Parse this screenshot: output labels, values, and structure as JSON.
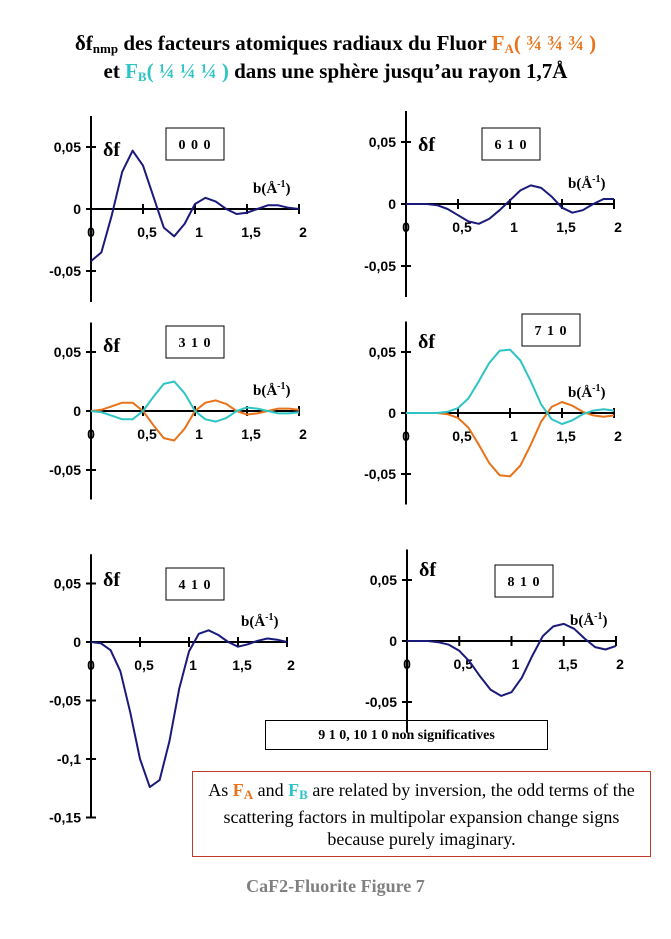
{
  "title": {
    "line1_prefix": "δf",
    "line1_sub": "nmp",
    "line1_text": " des facteurs atomiques radiaux du Fluor ",
    "fa_label": "F",
    "fa_sub": "A",
    "fa_pos": "( ¾ ¾ ¾ )",
    "line2_et": "et  ",
    "fb_label": "F",
    "fb_sub": "B",
    "fb_pos": "( ¼ ¼ ¼ )",
    "line2_text": " dans une sphère jusqu’au rayon 1,7Å"
  },
  "colors": {
    "navy": "#1a1a7a",
    "orange": "#e8731a",
    "cyan": "#2ec4c4"
  },
  "non_significant": "9 1 0, 10 1 0   non significatives",
  "note": {
    "p1": "As ",
    "fa": "F",
    "fa_sub": "A",
    "and": " and ",
    "fb": "F",
    "fb_sub": "B",
    "p2": " are related by inversion, the odd terms of the scattering factors in multipolar expansion change signs because purely imaginary."
  },
  "footer": "CaF2-Fluorite   Figure 7",
  "chart_data": [
    {
      "type": "line",
      "label": "0 0 0",
      "ylabel": "δf",
      "xlabel": "b(Å-1)",
      "xlim": [
        0,
        2
      ],
      "ylim": [
        -0.075,
        0.075
      ],
      "xticks": [
        "0",
        "0,5",
        "1",
        "1,5",
        "2"
      ],
      "yticks": [
        "0,05",
        "0",
        "-0,05"
      ],
      "series": [
        {
          "color": "navy",
          "x": [
            0,
            0.1,
            0.2,
            0.3,
            0.4,
            0.5,
            0.6,
            0.7,
            0.8,
            0.9,
            1.0,
            1.1,
            1.2,
            1.3,
            1.4,
            1.5,
            1.6,
            1.7,
            1.8,
            1.9,
            2.0
          ],
          "y": [
            -0.042,
            -0.035,
            -0.005,
            0.03,
            0.047,
            0.035,
            0.01,
            -0.015,
            -0.022,
            -0.012,
            0.004,
            0.009,
            0.006,
            0.0,
            -0.004,
            -0.003,
            0.0,
            0.003,
            0.003,
            0.001,
            0.0
          ]
        }
      ]
    },
    {
      "type": "line",
      "label": "6 1 0",
      "ylabel": "δf",
      "xlabel": "b(Å-1)",
      "xlim": [
        0,
        2
      ],
      "ylim": [
        -0.075,
        0.075
      ],
      "xticks": [
        "0",
        "0,5",
        "1",
        "1,5",
        "2"
      ],
      "yticks": [
        "0,05",
        "0",
        "-0,05"
      ],
      "series": [
        {
          "color": "navy",
          "x": [
            0,
            0.1,
            0.2,
            0.3,
            0.4,
            0.5,
            0.6,
            0.7,
            0.8,
            0.9,
            1.0,
            1.1,
            1.2,
            1.3,
            1.4,
            1.5,
            1.6,
            1.7,
            1.8,
            1.9,
            2.0
          ],
          "y": [
            0,
            0,
            0,
            -0.001,
            -0.004,
            -0.009,
            -0.014,
            -0.016,
            -0.012,
            -0.005,
            0.003,
            0.011,
            0.015,
            0.013,
            0.006,
            -0.003,
            -0.007,
            -0.005,
            0.0,
            0.004,
            0.004
          ]
        }
      ]
    },
    {
      "type": "line",
      "label": "3 1 0",
      "ylabel": "δf",
      "xlabel": "b(Å-1)",
      "xlim": [
        0,
        2
      ],
      "ylim": [
        -0.075,
        0.075
      ],
      "xticks": [
        "0",
        "0,5",
        "1",
        "1,5",
        "2"
      ],
      "yticks": [
        "0,05",
        "0",
        "-0,05"
      ],
      "series": [
        {
          "color": "orange",
          "x": [
            0,
            0.1,
            0.2,
            0.3,
            0.4,
            0.5,
            0.6,
            0.7,
            0.8,
            0.9,
            1.0,
            1.1,
            1.2,
            1.3,
            1.4,
            1.5,
            1.6,
            1.7,
            1.8,
            1.9,
            2.0
          ],
          "y": [
            0,
            0.001,
            0.004,
            0.007,
            0.007,
            0.0,
            -0.012,
            -0.023,
            -0.025,
            -0.015,
            0.0,
            0.007,
            0.009,
            0.006,
            0.0,
            -0.003,
            -0.002,
            0.0,
            0.002,
            0.002,
            0.001
          ]
        },
        {
          "color": "cyan",
          "x": [
            0,
            0.1,
            0.2,
            0.3,
            0.4,
            0.5,
            0.6,
            0.7,
            0.8,
            0.9,
            1.0,
            1.1,
            1.2,
            1.3,
            1.4,
            1.5,
            1.6,
            1.7,
            1.8,
            1.9,
            2.0
          ],
          "y": [
            0,
            -0.001,
            -0.004,
            -0.007,
            -0.007,
            0.0,
            0.012,
            0.023,
            0.025,
            0.015,
            0.0,
            -0.007,
            -0.009,
            -0.006,
            0.0,
            0.003,
            0.002,
            0.0,
            -0.002,
            -0.002,
            -0.001
          ]
        }
      ]
    },
    {
      "type": "line",
      "label": "7 1 0",
      "ylabel": "δf",
      "xlabel": "b(Å-1)",
      "xlim": [
        0,
        2
      ],
      "ylim": [
        -0.075,
        0.075
      ],
      "xticks": [
        "0",
        "0,5",
        "1",
        "1,5",
        "2"
      ],
      "yticks": [
        "0,05",
        "0",
        "-0,05"
      ],
      "series": [
        {
          "color": "orange",
          "x": [
            0,
            0.1,
            0.2,
            0.3,
            0.4,
            0.5,
            0.6,
            0.7,
            0.8,
            0.9,
            1.0,
            1.1,
            1.2,
            1.3,
            1.4,
            1.5,
            1.6,
            1.7,
            1.8,
            1.9,
            2.0
          ],
          "y": [
            0,
            0,
            0,
            0,
            -0.001,
            -0.004,
            -0.012,
            -0.026,
            -0.041,
            -0.051,
            -0.052,
            -0.043,
            -0.026,
            -0.007,
            0.005,
            0.009,
            0.006,
            0.001,
            -0.002,
            -0.003,
            -0.002
          ]
        },
        {
          "color": "cyan",
          "x": [
            0,
            0.1,
            0.2,
            0.3,
            0.4,
            0.5,
            0.6,
            0.7,
            0.8,
            0.9,
            1.0,
            1.1,
            1.2,
            1.3,
            1.4,
            1.5,
            1.6,
            1.7,
            1.8,
            1.9,
            2.0
          ],
          "y": [
            0,
            0,
            0,
            0,
            0.001,
            0.004,
            0.012,
            0.026,
            0.041,
            0.051,
            0.052,
            0.043,
            0.026,
            0.007,
            -0.005,
            -0.009,
            -0.006,
            -0.001,
            0.002,
            0.003,
            0.002
          ]
        }
      ]
    },
    {
      "type": "line",
      "label": "4 1 0",
      "ylabel": "δf",
      "xlabel": "b(Å-1)",
      "xlim": [
        0,
        2
      ],
      "ylim": [
        -0.15,
        0.075
      ],
      "xticks": [
        "0",
        "0,5",
        "1",
        "1,5",
        "2"
      ],
      "yticks": [
        "0,05",
        "0",
        "-0,05",
        "-0,1",
        "-0,15"
      ],
      "series": [
        {
          "color": "navy",
          "x": [
            0,
            0.1,
            0.2,
            0.3,
            0.4,
            0.5,
            0.6,
            0.7,
            0.8,
            0.9,
            1.0,
            1.1,
            1.2,
            1.3,
            1.4,
            1.5,
            1.6,
            1.7,
            1.8,
            1.9,
            2.0
          ],
          "y": [
            0,
            -0.001,
            -0.007,
            -0.025,
            -0.06,
            -0.1,
            -0.124,
            -0.118,
            -0.085,
            -0.04,
            -0.008,
            0.007,
            0.01,
            0.006,
            0.0,
            -0.004,
            -0.002,
            0.001,
            0.003,
            0.002,
            0.0
          ]
        }
      ]
    },
    {
      "type": "line",
      "label": "8 1 0",
      "ylabel": "δf",
      "xlabel": "b(Å-1)",
      "xlim": [
        0,
        2
      ],
      "ylim": [
        -0.075,
        0.075
      ],
      "xticks": [
        "0",
        "0,5",
        "1",
        "1,5",
        "2"
      ],
      "yticks": [
        "0,05",
        "0",
        "-0,05"
      ],
      "series": [
        {
          "color": "navy",
          "x": [
            0,
            0.1,
            0.2,
            0.3,
            0.4,
            0.5,
            0.6,
            0.7,
            0.8,
            0.9,
            1.0,
            1.1,
            1.2,
            1.3,
            1.4,
            1.5,
            1.6,
            1.7,
            1.8,
            1.9,
            2.0
          ],
          "y": [
            0,
            0,
            0,
            -0.001,
            -0.003,
            -0.008,
            -0.017,
            -0.029,
            -0.04,
            -0.045,
            -0.042,
            -0.03,
            -0.012,
            0.004,
            0.012,
            0.014,
            0.01,
            0.002,
            -0.005,
            -0.007,
            -0.004
          ]
        }
      ]
    }
  ]
}
